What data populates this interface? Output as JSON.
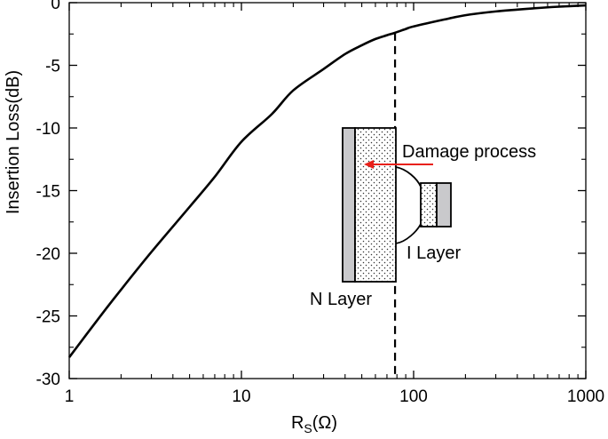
{
  "chart_data": {
    "type": "line",
    "xscale": "log",
    "xlim": [
      1,
      1000
    ],
    "ylim": [
      -30,
      0
    ],
    "xticks": [
      "1",
      "10",
      "100",
      "1000"
    ],
    "yticks": [
      "0",
      "-5",
      "-10",
      "-15",
      "-20",
      "-25",
      "-30"
    ],
    "xlabel": {
      "main": "R",
      "sub": "S",
      "rest": "(Ω)"
    },
    "ylabel": "Insertion Loss(dB)",
    "grid": false,
    "legend": null,
    "series": [
      {
        "x": [
          1,
          1.5,
          2,
          3,
          5,
          7,
          10,
          15,
          20,
          30,
          40,
          50,
          60,
          70,
          78,
          90,
          100,
          150,
          200,
          300,
          500,
          700,
          1000
        ],
        "y": [
          -28.3,
          -25.1,
          -22.9,
          -19.9,
          -16.3,
          -13.9,
          -11.1,
          -8.9,
          -7.0,
          -5.3,
          -4.1,
          -3.4,
          -2.9,
          -2.6,
          -2.4,
          -2.1,
          -1.9,
          -1.35,
          -1.0,
          -0.7,
          -0.45,
          -0.32,
          -0.22
        ],
        "color": "#000000"
      }
    ],
    "vline": {
      "x": 78,
      "style": "dashed",
      "color": "#000000"
    },
    "annotations": {
      "arrow_label": "Damage process",
      "n_layer_label": "N Layer",
      "i_layer_label": "I Layer",
      "arrow_color": "#e8201a"
    }
  }
}
